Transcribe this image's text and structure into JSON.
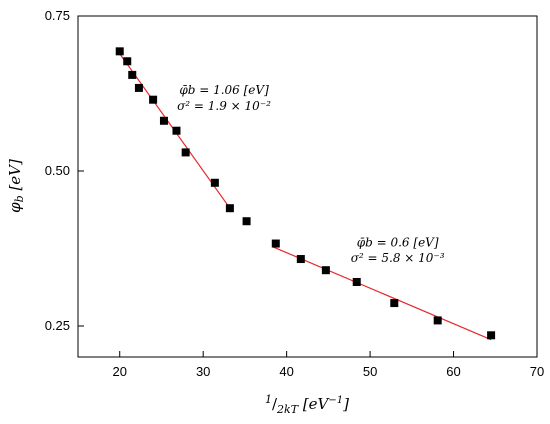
{
  "chart_data": {
    "type": "scatter",
    "title": "",
    "xlabel": "1/2kT [eV⁻¹]",
    "ylabel": "φb [eV]",
    "xlim": [
      15,
      70
    ],
    "ylim": [
      0.2,
      0.75
    ],
    "xticks": [
      20,
      30,
      40,
      50,
      60,
      70
    ],
    "yticks": [
      0.25,
      0.5,
      0.75
    ],
    "ytick_labels": [
      "0.25",
      "0.50",
      "0.75"
    ],
    "grid": false,
    "marker_color": "#000000",
    "line_color": "#e8272b",
    "series": [
      {
        "values": [
          [
            20.0,
            0.693
          ],
          [
            20.9,
            0.677
          ],
          [
            21.5,
            0.655
          ],
          [
            22.3,
            0.634
          ],
          [
            24.0,
            0.615
          ],
          [
            25.3,
            0.581
          ],
          [
            26.8,
            0.565
          ],
          [
            27.9,
            0.53
          ],
          [
            31.4,
            0.481
          ],
          [
            33.2,
            0.44
          ],
          [
            35.2,
            0.419
          ],
          [
            38.7,
            0.383
          ],
          [
            41.7,
            0.358
          ],
          [
            44.7,
            0.34
          ],
          [
            48.4,
            0.321
          ],
          [
            52.9,
            0.287
          ],
          [
            58.1,
            0.259
          ],
          [
            64.5,
            0.235
          ]
        ]
      }
    ],
    "fits": [
      {
        "x": [
          19.8,
          33.2
        ],
        "y": [
          0.693,
          0.44
        ]
      },
      {
        "x": [
          38.3,
          64.5
        ],
        "y": [
          0.378,
          0.228
        ]
      }
    ],
    "annotations": [
      {
        "line1": "φ̄b = 1.06 [eV]",
        "line2": "σ² = 1.9 × 10⁻²",
        "x": 32.5,
        "y1": 0.624,
        "y2": 0.598
      },
      {
        "line1": "φ̄b = 0.6 [eV]",
        "line2": "σ² = 5.8 × 10⁻³",
        "x": 53.3,
        "y1": 0.378,
        "y2": 0.353
      }
    ]
  }
}
